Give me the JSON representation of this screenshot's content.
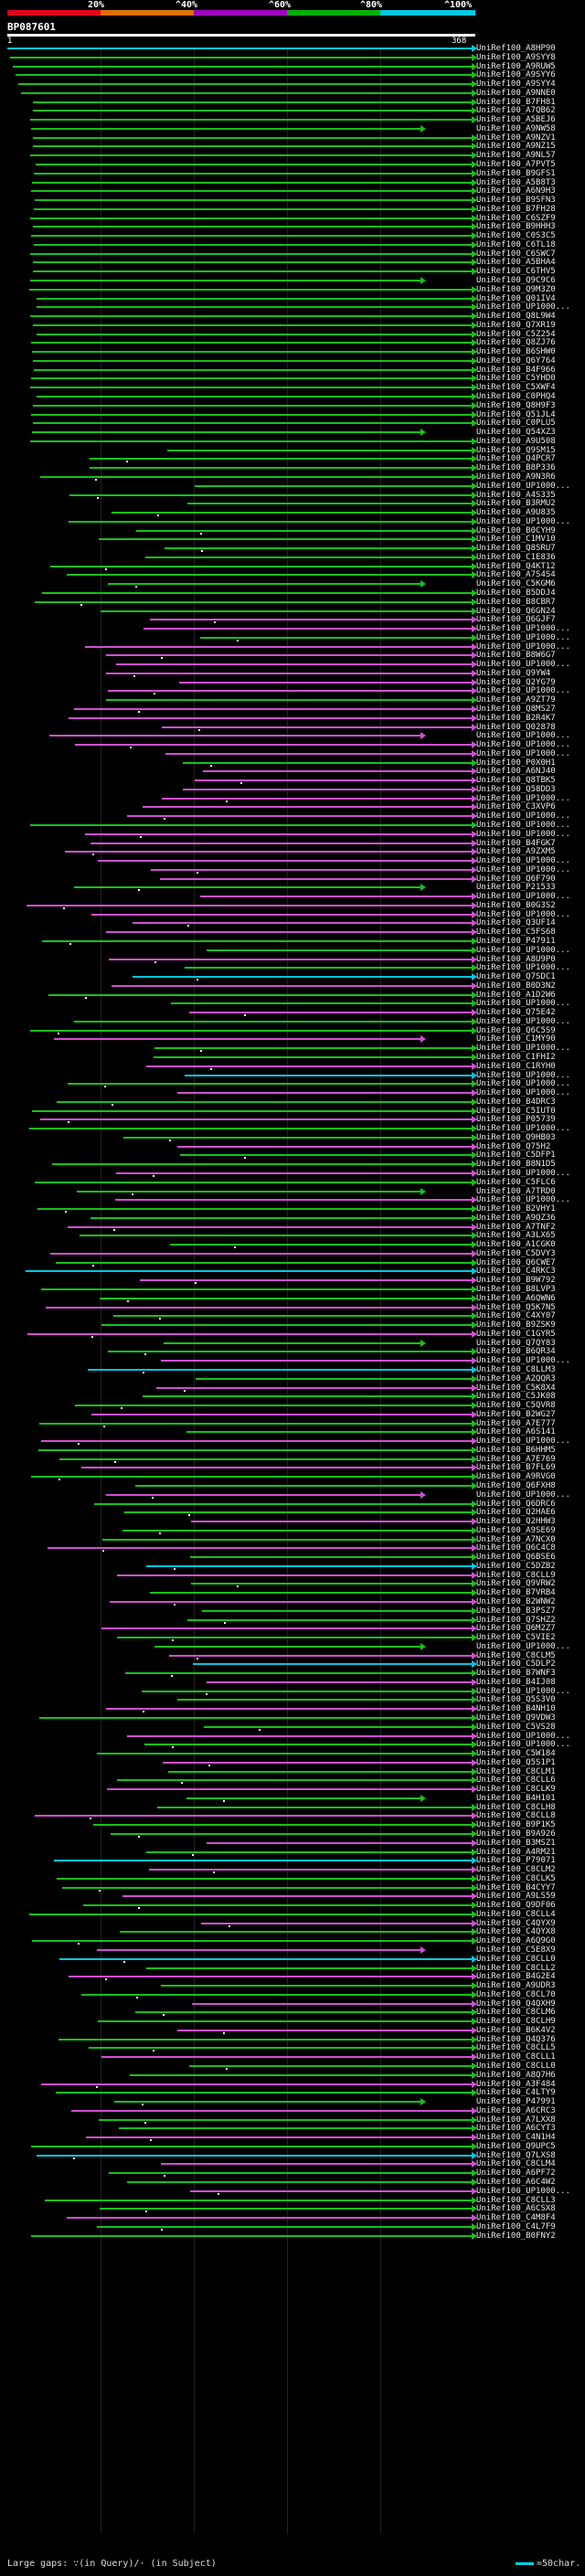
{
  "scale": {
    "ticks": [
      "20%",
      "^40%",
      "^60%",
      "^80%",
      "^100%"
    ],
    "colors": [
      "#e0001c",
      "#e07000",
      "#a000c0",
      "#00b000",
      "#00c8e0"
    ]
  },
  "query": {
    "title": "BP087601",
    "start": "1",
    "end": "368"
  },
  "legend": {
    "left": "Large gaps: ∵(in Query)/· (in Subject)",
    "right": "=50char."
  },
  "colors": {
    "cyan": "#00c8e0",
    "green": "#18c018",
    "magenta": "#d050d0",
    "white": "#ffffff"
  },
  "hits": [
    "UniRef100_A8HP90",
    "UniRef100_A9SYY8",
    "UniRef100_A9RUW5",
    "UniRef100_A9SYY6",
    "UniRef100_A9SYY4",
    "UniRef100_A9NNE0",
    "UniRef100_B7FH81",
    "UniRef100_A7QB62",
    "UniRef100_A5BEJ6",
    "UniRef100_A9NW58",
    "UniRef100_A9NZV1",
    "UniRef100_A9NZ15",
    "UniRef100_A9NL57",
    "UniRef100_A7PVT5",
    "UniRef100_B9GFS1",
    "UniRef100_A5B8T3",
    "UniRef100_A6N9H3",
    "UniRef100_B9SFN3",
    "UniRef100_B7FH28",
    "UniRef100_C6SZF9",
    "UniRef100_B9HHH3",
    "UniRef100_C0S3C5",
    "UniRef100_C6TL18",
    "UniRef100_C6SWC7",
    "UniRef100_A5BHA4",
    "UniRef100_C6THV5",
    "UniRef100_Q9C9C6",
    "UniRef100_Q9M3Z0",
    "UniRef100_Q01IV4",
    "UniRef100_UP1000...",
    "UniRef100_Q8L9W4",
    "UniRef100_Q7XR19",
    "UniRef100_C5Z254",
    "UniRef100_Q8ZJ76",
    "UniRef100_B6SHW0",
    "UniRef100_Q6Y764",
    "UniRef100_B4F966",
    "UniRef100_C5YHD0",
    "UniRef100_C5XWF4",
    "UniRef100_C0PHQ4",
    "UniRef100_Q8H9F3",
    "UniRef100_Q51JL4",
    "UniRef100_C0PLU5",
    "UniRef100_Q54XZ3",
    "UniRef100_A9U508",
    "UniRef100_Q9SM15",
    "UniRef100_Q4PCR7",
    "UniRef100_B8P336",
    "UniRef100_A9N3R6",
    "UniRef100_UP1000...",
    "UniRef100_A4S335",
    "UniRef100_B3RMU2",
    "UniRef100_A9U835",
    "UniRef100_UP1000...",
    "UniRef100_B0CYH9",
    "UniRef100_C1MV10",
    "UniRef100_Q8SRU7",
    "UniRef100_C1E836",
    "UniRef100_Q4KT12",
    "UniRef100_A7S4S4",
    "UniRef100_C5KGM6",
    "UniRef100_B5DDJ4",
    "UniRef100_B8CBR7",
    "UniRef100_Q6GN24",
    "UniRef100_Q6GJF7",
    "UniRef100_UP1000...",
    "UniRef100_UP1000...",
    "UniRef100_UP1000...",
    "UniRef100_B8W6G7",
    "UniRef100_UP1000...",
    "UniRef100_Q9YW4",
    "UniRef100_Q2YG79",
    "UniRef100_UP1000...",
    "UniRef100_A9ZT79",
    "UniRef100_Q8MS27",
    "UniRef100_B2R4K7",
    "UniRef100_Q02878",
    "UniRef100_UP1000...",
    "UniRef100_UP1000...",
    "UniRef100_UP1000...",
    "UniRef100_P0X0H1",
    "UniRef100_A6NJ40",
    "UniRef100_Q8TBK5",
    "UniRef100_Q58DD3",
    "UniRef100_UP1000...",
    "UniRef100_C3XVP6",
    "UniRef100_UP1000...",
    "UniRef100_UP1000...",
    "UniRef100_UP1000...",
    "UniRef100_B4FGK7",
    "UniRef100_A9ZXM5",
    "UniRef100_UP1000...",
    "UniRef100_UP1000...",
    "UniRef100_Q6F790",
    "UniRef100_P21533",
    "UniRef100_UP1000...",
    "UniRef100_B0G3S2",
    "UniRef100_UP1000...",
    "UniRef100_Q3UF14",
    "UniRef100_C5FS68",
    "UniRef100_P47911",
    "UniRef100_UP1000...",
    "UniRef100_A8U9P0",
    "UniRef100_UP1000...",
    "UniRef100_Q7SDC1",
    "UniRef100_B0D3N2",
    "UniRef100_A1D2W6",
    "UniRef100_UP1000...",
    "UniRef100_Q75E42",
    "UniRef100_UP1000...",
    "UniRef100_Q6C5S9",
    "UniRef100_C1MY90",
    "UniRef100_UP1000...",
    "UniRef100_C1FHI2",
    "UniRef100_C1RYH0",
    "UniRef100_UP1000...",
    "UniRef100_UP1000...",
    "UniRef100_UP1000...",
    "UniRef100_B4DRC3",
    "UniRef100_C5IUT0",
    "UniRef100_P05739",
    "UniRef100_UP1000...",
    "UniRef100_Q9HB03",
    "UniRef100_Q75H2",
    "UniRef100_C5DFP1",
    "UniRef100_B8N1D5",
    "UniRef100_UP1000...",
    "UniRef100_C5FLC6",
    "UniRef100_A7TRD0",
    "UniRef100_UP1000...",
    "UniRef100_B2VHY1",
    "UniRef100_A9QZ36",
    "UniRef100_A7TNF2",
    "UniRef100_A3LX65",
    "UniRef100_A1CGK0",
    "UniRef100_C5DVY3",
    "UniRef100_Q6CWE7",
    "UniRef100_C4RKC3",
    "UniRef100_B9W792",
    "UniRef100_B8LVP3",
    "UniRef100_A6QWN6",
    "UniRef100_Q5K7N5",
    "UniRef100_C4XY07",
    "UniRef100_B9ZSK9",
    "UniRef100_C1GYR5",
    "UniRef100_Q7QY83",
    "UniRef100_B6QR34",
    "UniRef100_UP1000...",
    "UniRef100_C8LLM3",
    "UniRef100_A2QQR3",
    "UniRef100_C5K8X4",
    "UniRef100_C5JK08",
    "UniRef100_C5QVR8",
    "UniRef100_B2WG27",
    "UniRef100_A7E777",
    "UniRef100_A6S141",
    "UniRef100_UP1000...",
    "UniRef100_B6HHM5",
    "UniRef100_A7E769",
    "UniRef100_B7FL69",
    "UniRef100_A9RVG0",
    "UniRef100_Q6FXH8",
    "UniRef100_UP1000...",
    "UniRef100_Q6DRC6",
    "UniRef100_Q2HAE6",
    "UniRef100_Q2HHW3",
    "UniRef100_A9SE69",
    "UniRef100_A7NCX0",
    "UniRef100_Q6C4C8",
    "UniRef100_Q6BSE6",
    "UniRef100_C5DZB2",
    "UniRef100_C8CLL9",
    "UniRef100_Q9VRW2",
    "UniRef100_B7VRB4",
    "UniRef100_B2WNW2",
    "UniRef100_B3PSZ7",
    "UniRef100_Q7SHZ2",
    "UniRef100_Q6M2Z7",
    "UniRef100_C5VIE2",
    "UniRef100_UP1000...",
    "UniRef100_C8CLM5",
    "UniRef100_C5DLP2",
    "UniRef100_B7WNF3",
    "UniRef100_B4IJ08",
    "UniRef100_UP1000...",
    "UniRef100_Q5S3V0",
    "UniRef100_B4NH10",
    "UniRef100_Q9VDW3",
    "UniRef100_C5VS28",
    "UniRef100_UP1000...",
    "UniRef100_UP1000...",
    "UniRef100_C5W184",
    "UniRef100_Q5S1P1",
    "UniRef100_C8CLM1",
    "UniRef100_C8CLL6",
    "UniRef100_C8CLK9",
    "UniRef100_B4H101",
    "UniRef100_C8CLH8",
    "UniRef100_C8CLL8",
    "UniRef100_B9P1K5",
    "UniRef100_B9A926",
    "UniRef100_B3MSZ1",
    "UniRef100_A4RM21",
    "UniRef100_P79071",
    "UniRef100_C8CLM2",
    "UniRef100_C8CLK5",
    "UniRef100_B4CYY7",
    "UniRef100_A9LS59",
    "UniRef100_Q9DF06",
    "UniRef100_C8CLL4",
    "UniRef100_C4QYX9",
    "UniRef100_C4QYX8",
    "UniRef100_A6Q9G0",
    "UniRef100_C5E8X9",
    "UniRef100_C8CLL0",
    "UniRef100_C8CLL2",
    "UniRef100_B4G2E4",
    "UniRef100_A9UDR3",
    "UniRef100_C8CL70",
    "UniRef100_Q4QXH9",
    "UniRef100_C8CLM6",
    "UniRef100_C8CLH9",
    "UniRef100_B6K4V2",
    "UniRef100_Q4Q376",
    "UniRef100_C8CLL5",
    "UniRef100_C8CLL1",
    "UniRef100_C8CLL0",
    "UniRef100_A8Q7H6",
    "UniRef100_A3F484",
    "UniRef100_C4LTY9",
    "UniRef100_P47991",
    "UniRef100_A6CRC3",
    "UniRef100_A7LXX8",
    "UniRef100_A6CYT3",
    "UniRef100_C4N1H4",
    "UniRef100_Q9UPC5",
    "UniRef100_Q7LXS8",
    "UniRef100_C8CLM4",
    "UniRef100_A6PF72",
    "UniRef100_A6C4W2",
    "UniRef100_UP1000...",
    "UniRef100_C8CLL3",
    "UniRef100_A6CSX8",
    "UniRef100_C4M8F4",
    "UniRef100_C4L7F9",
    "UniRef100_B0FNY2"
  ]
}
